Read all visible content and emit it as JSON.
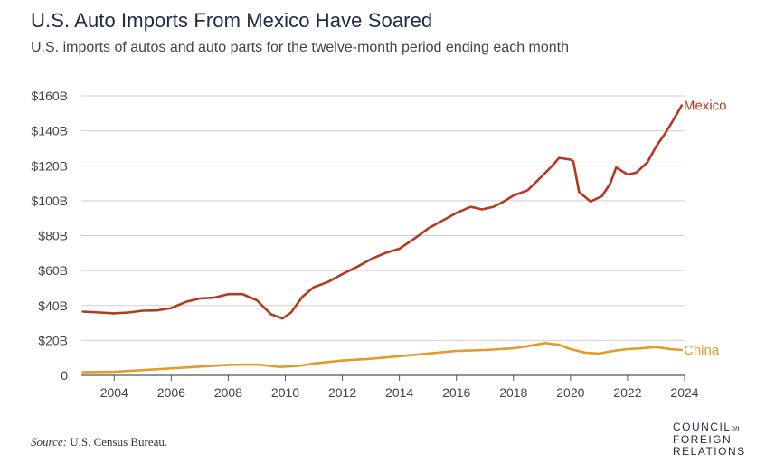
{
  "header": {
    "title": "U.S. Auto Imports From Mexico Have Soared",
    "subtitle": "U.S. imports of autos and auto parts for the twelve-month period ending each month"
  },
  "footer": {
    "source_label": "Source:",
    "source_text": "U.S. Census Bureau.",
    "logo_line1": "COUNCIL",
    "logo_on": "on",
    "logo_line2": "FOREIGN",
    "logo_line3": "RELATIONS"
  },
  "colors": {
    "mexico": "#b5391f",
    "china": "#e39b2b",
    "grid": "#cfcfcf",
    "axis": "#555555"
  },
  "chart_data": {
    "type": "line",
    "title": "U.S. Auto Imports From Mexico Have Soared",
    "subtitle": "U.S. imports of autos and auto parts for the twelve-month period ending each month",
    "xlabel": "",
    "ylabel": "",
    "xlim": [
      2002.85,
      2024.0
    ],
    "ylim": [
      0,
      160
    ],
    "x_ticks": [
      2004,
      2006,
      2008,
      2010,
      2012,
      2014,
      2016,
      2018,
      2020,
      2022,
      2024
    ],
    "x_tick_labels": [
      "2004",
      "2006",
      "2008",
      "2010",
      "2012",
      "2014",
      "2016",
      "2018",
      "2020",
      "2022",
      "2024"
    ],
    "y_ticks": [
      0,
      20,
      40,
      60,
      80,
      100,
      120,
      140,
      160
    ],
    "y_tick_labels": [
      "0",
      "$20B",
      "$40B",
      "$60B",
      "$80B",
      "$100B",
      "$120B",
      "$140B",
      "$160B"
    ],
    "grid": true,
    "legend": "direct labels at line ends",
    "series": [
      {
        "name": "Mexico",
        "points": [
          [
            2002.9,
            36.5
          ],
          [
            2003.5,
            36.0
          ],
          [
            2004.0,
            35.5
          ],
          [
            2004.5,
            36.0
          ],
          [
            2005.0,
            37.0
          ],
          [
            2005.5,
            37.2
          ],
          [
            2006.0,
            38.5
          ],
          [
            2006.5,
            42.0
          ],
          [
            2007.0,
            44.0
          ],
          [
            2007.5,
            44.5
          ],
          [
            2008.0,
            46.5
          ],
          [
            2008.5,
            46.5
          ],
          [
            2009.0,
            43.0
          ],
          [
            2009.5,
            35.0
          ],
          [
            2009.9,
            32.5
          ],
          [
            2010.2,
            36.0
          ],
          [
            2010.6,
            45.0
          ],
          [
            2011.0,
            50.5
          ],
          [
            2011.5,
            53.5
          ],
          [
            2012.0,
            58.0
          ],
          [
            2012.5,
            62.0
          ],
          [
            2013.0,
            66.5
          ],
          [
            2013.5,
            70.0
          ],
          [
            2014.0,
            72.5
          ],
          [
            2014.5,
            78.0
          ],
          [
            2015.0,
            84.0
          ],
          [
            2015.5,
            88.5
          ],
          [
            2016.0,
            93.0
          ],
          [
            2016.5,
            96.5
          ],
          [
            2016.9,
            95.0
          ],
          [
            2017.3,
            96.5
          ],
          [
            2017.6,
            99.0
          ],
          [
            2018.0,
            103.0
          ],
          [
            2018.5,
            106.0
          ],
          [
            2019.0,
            114.0
          ],
          [
            2019.3,
            119.0
          ],
          [
            2019.6,
            124.5
          ],
          [
            2020.0,
            123.5
          ],
          [
            2020.1,
            122.5
          ],
          [
            2020.3,
            105.0
          ],
          [
            2020.7,
            99.5
          ],
          [
            2021.1,
            102.5
          ],
          [
            2021.4,
            110.0
          ],
          [
            2021.6,
            119.0
          ],
          [
            2022.0,
            115.0
          ],
          [
            2022.3,
            116.0
          ],
          [
            2022.7,
            122.0
          ],
          [
            2023.0,
            131.0
          ],
          [
            2023.3,
            138.0
          ],
          [
            2023.6,
            146.0
          ],
          [
            2023.9,
            154.5
          ]
        ]
      },
      {
        "name": "China",
        "points": [
          [
            2002.9,
            1.8
          ],
          [
            2004.0,
            2.0
          ],
          [
            2005.0,
            3.0
          ],
          [
            2006.0,
            4.0
          ],
          [
            2007.0,
            5.0
          ],
          [
            2008.0,
            6.0
          ],
          [
            2009.0,
            6.2
          ],
          [
            2009.8,
            4.8
          ],
          [
            2010.5,
            5.5
          ],
          [
            2011.0,
            6.8
          ],
          [
            2012.0,
            8.5
          ],
          [
            2013.0,
            9.5
          ],
          [
            2014.0,
            11.0
          ],
          [
            2015.0,
            12.5
          ],
          [
            2016.0,
            14.0
          ],
          [
            2017.0,
            14.5
          ],
          [
            2018.0,
            15.5
          ],
          [
            2018.6,
            17.0
          ],
          [
            2019.1,
            18.5
          ],
          [
            2019.6,
            17.5
          ],
          [
            2020.0,
            15.0
          ],
          [
            2020.5,
            13.0
          ],
          [
            2021.0,
            12.5
          ],
          [
            2021.5,
            14.0
          ],
          [
            2022.0,
            15.0
          ],
          [
            2022.5,
            15.5
          ],
          [
            2023.0,
            16.2
          ],
          [
            2023.5,
            15.0
          ],
          [
            2023.9,
            14.5
          ]
        ]
      }
    ]
  }
}
